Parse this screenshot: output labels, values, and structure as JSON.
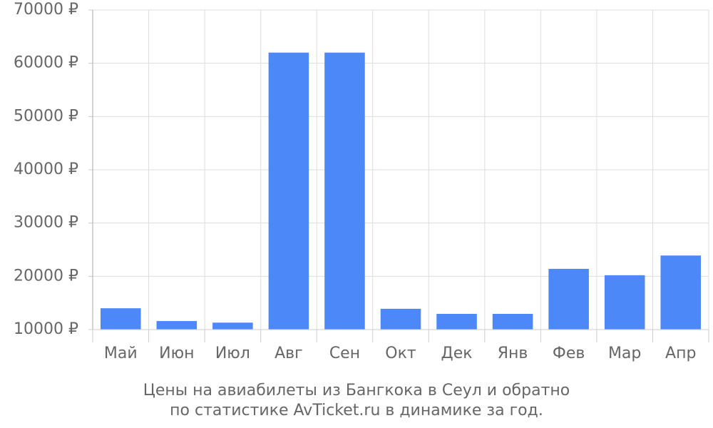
{
  "chart_data": {
    "type": "bar",
    "title": "Цены на авиабилеты из Бангкока в Сеул и обратно",
    "subtitle": "по статистике AvTicket.ru в динамике за год.",
    "categories": [
      "Май",
      "Июн",
      "Июл",
      "Авг",
      "Сен",
      "Окт",
      "Дек",
      "Янв",
      "Фев",
      "Мар",
      "Апр"
    ],
    "values": [
      14000,
      11600,
      11300,
      62000,
      62000,
      13900,
      12950,
      12950,
      21400,
      20200,
      23900
    ],
    "color": "#4d88f8",
    "ylim": [
      10000,
      70000
    ],
    "yticks": [
      {
        "value": 10000,
        "label": "10000 ₽"
      },
      {
        "value": 20000,
        "label": "20000 ₽"
      },
      {
        "value": 30000,
        "label": "30000 ₽"
      },
      {
        "value": 40000,
        "label": "40000 ₽"
      },
      {
        "value": 50000,
        "label": "50000 ₽"
      },
      {
        "value": 60000,
        "label": "60000 ₽"
      },
      {
        "value": 70000,
        "label": "70000 ₽"
      }
    ],
    "grid": true
  }
}
